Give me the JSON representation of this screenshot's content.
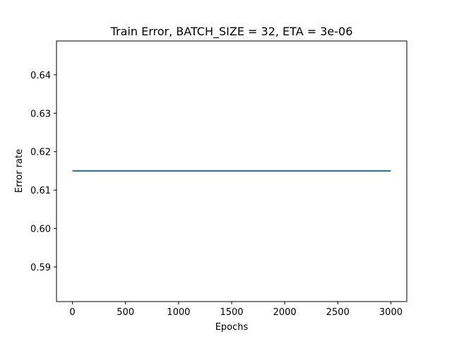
{
  "chart_data": {
    "type": "line",
    "title": "Train Error, BATCH_SIZE = 32, ETA = 3e-06",
    "xlabel": "Epochs",
    "ylabel": "Error rate",
    "xlim": [
      -150,
      3150
    ],
    "ylim": [
      0.581,
      0.6488
    ],
    "xticks": [
      0,
      500,
      1000,
      1500,
      2000,
      2500,
      3000
    ],
    "yticks": [
      0.59,
      0.6,
      0.61,
      0.62,
      0.63,
      0.64
    ],
    "ytick_labels": [
      "0.59",
      "0.60",
      "0.61",
      "0.62",
      "0.63",
      "0.64"
    ],
    "grid": false,
    "series": [
      {
        "color": "#1f77b4",
        "x": [
          0,
          500,
          1000,
          1500,
          2000,
          2500,
          3000
        ],
        "y": [
          0.615,
          0.615,
          0.615,
          0.615,
          0.615,
          0.615,
          0.615
        ]
      }
    ]
  }
}
